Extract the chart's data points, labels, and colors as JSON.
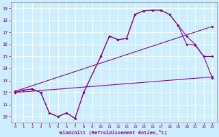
{
  "background_color": "#cceeff",
  "line_color": "#880088",
  "grid_color": "#ffffff",
  "xlabel": "Windchill (Refroidissement éolien,°C)",
  "xlabel_color": "#880088",
  "tick_color": "#880088",
  "spine_color": "#888888",
  "xlim": [
    -0.5,
    23.5
  ],
  "ylim": [
    9.5,
    19.5
  ],
  "xticks": [
    0,
    1,
    2,
    3,
    4,
    5,
    6,
    7,
    8,
    9,
    10,
    11,
    12,
    13,
    14,
    15,
    16,
    17,
    18,
    19,
    20,
    21,
    22,
    23
  ],
  "yticks": [
    10,
    11,
    12,
    13,
    14,
    15,
    16,
    17,
    18,
    19
  ],
  "line1_x": [
    0,
    1,
    2,
    3,
    4,
    5,
    6,
    7,
    8,
    10,
    11,
    12,
    13,
    14,
    15,
    16,
    17,
    18,
    19,
    20,
    21,
    22,
    23
  ],
  "line1_y": [
    12.0,
    12.2,
    12.3,
    12.0,
    10.3,
    10.0,
    10.3,
    9.85,
    12.0,
    15.0,
    16.7,
    16.4,
    16.5,
    18.5,
    18.8,
    18.85,
    18.85,
    18.5,
    17.6,
    16.0,
    15.95,
    15.0,
    15.0
  ],
  "line2_x": [
    0,
    1,
    2,
    3,
    4,
    5,
    6,
    7,
    8,
    10,
    11,
    12,
    13,
    14,
    15,
    16,
    17,
    18,
    19,
    20,
    21,
    22,
    23
  ],
  "line2_y": [
    12.0,
    12.2,
    12.3,
    12.0,
    10.3,
    10.0,
    10.3,
    9.85,
    12.0,
    15.0,
    16.7,
    16.4,
    16.5,
    18.5,
    18.8,
    18.85,
    18.85,
    18.5,
    17.6,
    16.7,
    16.0,
    15.0,
    13.2
  ],
  "line3_x": [
    0,
    23
  ],
  "line3_y": [
    12.1,
    17.5
  ],
  "line4_x": [
    0,
    23
  ],
  "line4_y": [
    12.0,
    13.3
  ]
}
